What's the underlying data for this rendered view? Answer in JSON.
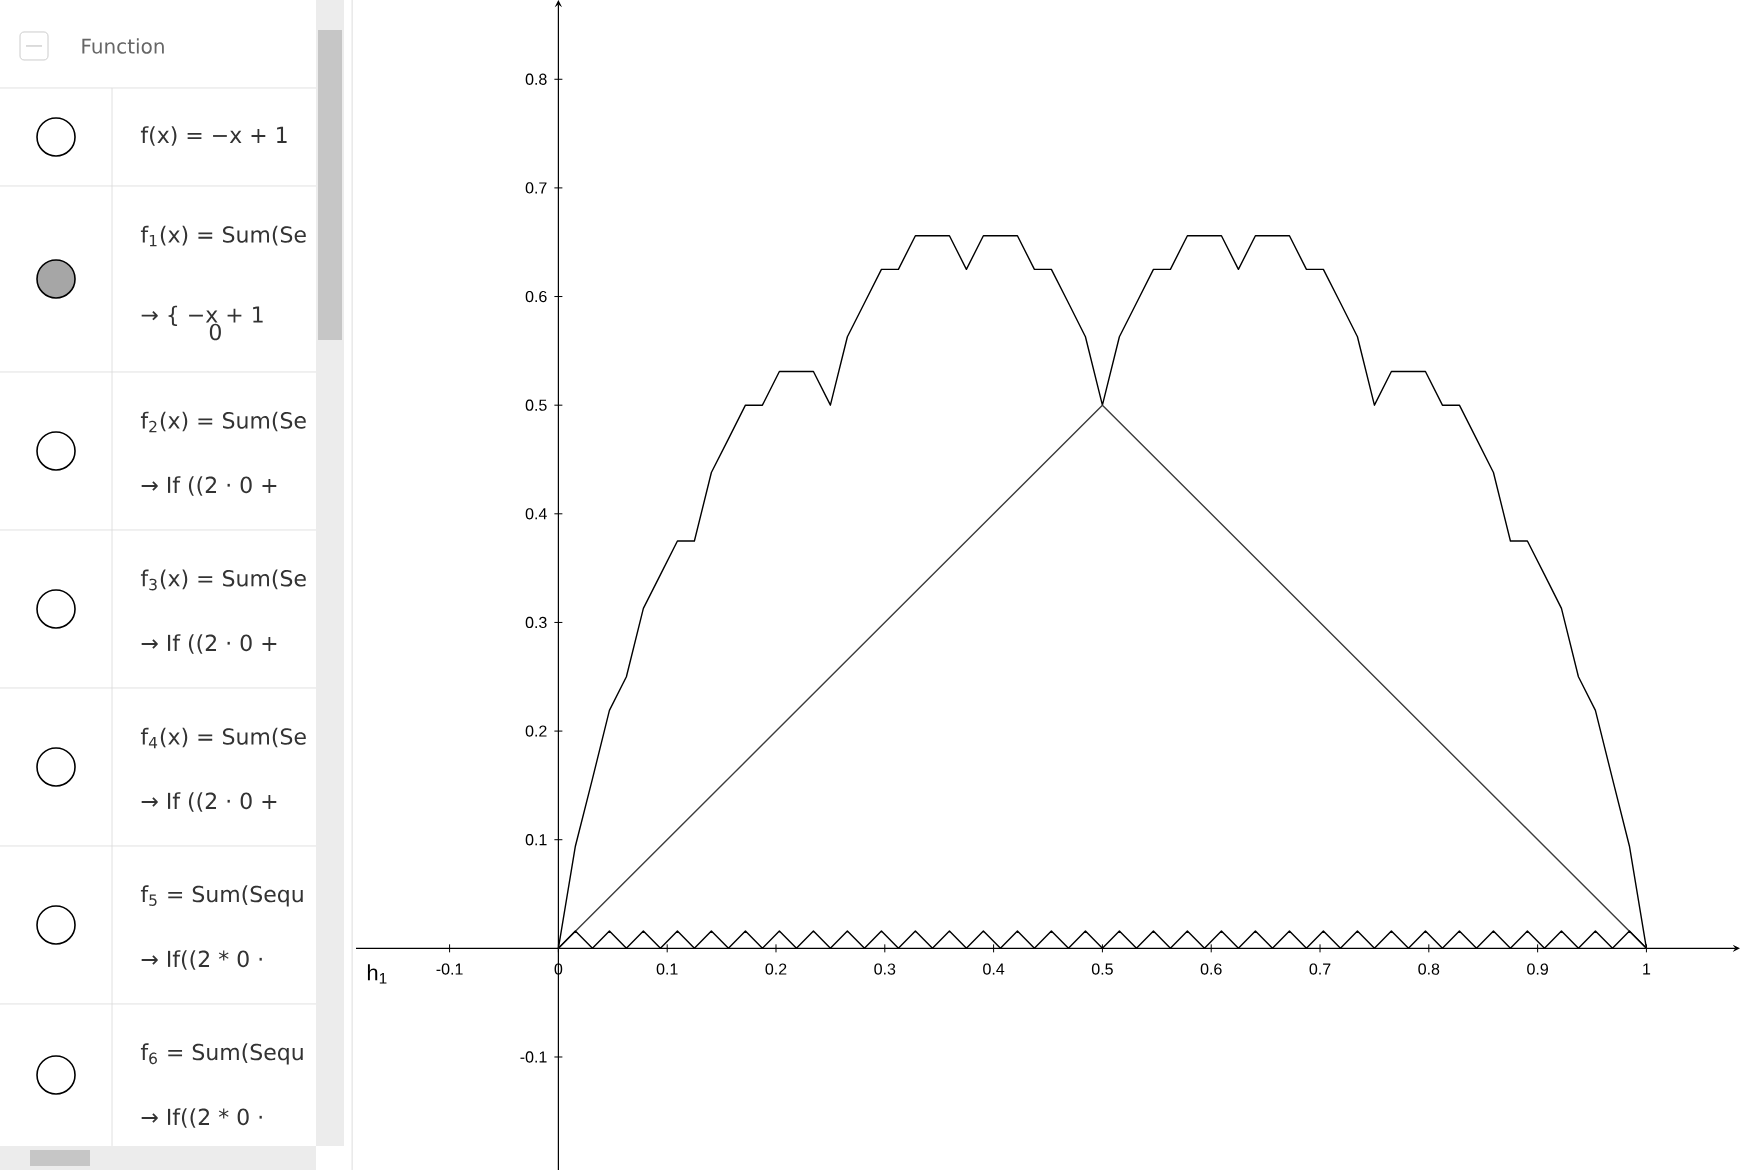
{
  "chart_data": {
    "type": "line",
    "xlim": [
      -0.186,
      1.086
    ],
    "ylim": [
      -0.204,
      0.873
    ],
    "xticks": [
      -0.1,
      0,
      0.1,
      0.2,
      0.3,
      0.4,
      0.5,
      0.6,
      0.7,
      0.8,
      0.9,
      1
    ],
    "yticks": [
      -0.1,
      0.1,
      0.2,
      0.3,
      0.4,
      0.5,
      0.6,
      0.7,
      0.8
    ],
    "grid": false,
    "marker": "none",
    "line_style": "solid",
    "series": [
      {
        "color": "#000000",
        "x": [
          0,
          0.0156,
          0.0313,
          0.0469,
          0.0625,
          0.0781,
          0.0938,
          0.1094,
          0.125,
          0.1406,
          0.1563,
          0.1719,
          0.1875,
          0.2031,
          0.2188,
          0.2344,
          0.25,
          0.2656,
          0.2813,
          0.2969,
          0.3125,
          0.3281,
          0.3438,
          0.3594,
          0.375,
          0.3906,
          0.4063,
          0.4219,
          0.4375,
          0.4531,
          0.4688,
          0.4844,
          0.5,
          0.5156,
          0.5313,
          0.5469,
          0.5625,
          0.5781,
          0.5938,
          0.6094,
          0.625,
          0.6406,
          0.6563,
          0.6719,
          0.6875,
          0.7031,
          0.7188,
          0.7344,
          0.75,
          0.7656,
          0.7813,
          0.7969,
          0.8125,
          0.8281,
          0.8438,
          0.8594,
          0.875,
          0.8906,
          0.9063,
          0.9219,
          0.9375,
          0.9531,
          0.9688,
          0.9844,
          1
        ],
        "values": [
          0,
          0.094,
          0.156,
          0.219,
          0.25,
          0.313,
          0.344,
          0.375,
          0.375,
          0.438,
          0.469,
          0.5,
          0.5,
          0.531,
          0.531,
          0.531,
          0.5,
          0.563,
          0.594,
          0.625,
          0.625,
          0.656,
          0.656,
          0.656,
          0.625,
          0.656,
          0.656,
          0.656,
          0.625,
          0.625,
          0.594,
          0.563,
          0.5,
          0.563,
          0.594,
          0.625,
          0.625,
          0.656,
          0.656,
          0.656,
          0.625,
          0.656,
          0.656,
          0.656,
          0.625,
          0.625,
          0.594,
          0.563,
          0.5,
          0.531,
          0.531,
          0.531,
          0.5,
          0.5,
          0.469,
          0.438,
          0.375,
          0.375,
          0.344,
          0.313,
          0.25,
          0.219,
          0.156,
          0.094,
          0
        ]
      },
      {
        "color": "#3c3c3c",
        "x": [
          0,
          0.5,
          1
        ],
        "values": [
          0,
          0.5,
          0
        ]
      },
      {
        "color": "#000000",
        "x": [
          0,
          0.0156,
          0.0313,
          0.0469,
          0.0625,
          0.0781,
          0.0938,
          0.1094,
          0.125,
          0.1406,
          0.1563,
          0.1719,
          0.1875,
          0.2031,
          0.2188,
          0.2344,
          0.25,
          0.2656,
          0.2813,
          0.2969,
          0.3125,
          0.3281,
          0.3438,
          0.3594,
          0.375,
          0.3906,
          0.4063,
          0.4219,
          0.4375,
          0.4531,
          0.4688,
          0.4844,
          0.5,
          0.5156,
          0.5313,
          0.5469,
          0.5625,
          0.5781,
          0.5938,
          0.6094,
          0.625,
          0.6406,
          0.6563,
          0.6719,
          0.6875,
          0.7031,
          0.7188,
          0.7344,
          0.75,
          0.7656,
          0.7813,
          0.7969,
          0.8125,
          0.8281,
          0.8438,
          0.8594,
          0.875,
          0.8906,
          0.9063,
          0.9219,
          0.9375,
          0.9531,
          0.9688,
          0.9844,
          1
        ],
        "values": [
          0,
          0.016,
          0,
          0.016,
          0,
          0.016,
          0,
          0.016,
          0,
          0.016,
          0,
          0.016,
          0,
          0.016,
          0,
          0.016,
          0,
          0.016,
          0,
          0.016,
          0,
          0.016,
          0,
          0.016,
          0,
          0.016,
          0,
          0.016,
          0,
          0.016,
          0,
          0.016,
          0,
          0.016,
          0,
          0.016,
          0,
          0.016,
          0,
          0.016,
          0,
          0.016,
          0,
          0.016,
          0,
          0.016,
          0,
          0.016,
          0,
          0.016,
          0,
          0.016,
          0,
          0.016,
          0,
          0.016,
          0,
          0.016,
          0,
          0.016,
          0,
          0.016,
          0,
          0.016,
          0
        ]
      }
    ],
    "annotations": [
      "Function",
      "f(x) = −x + 1",
      "f$_{1}$(x) = Sum(Se",
      "→ { −x + 1",
      "0",
      "f$_{2}$(x) = Sum(Se",
      "→ If ((2 · 0 +",
      "f$_{3}$(x) = Sum(Se",
      "→ If ((2 · 0 +",
      "f$_{4}$(x) = Sum(Se",
      "→ If ((2 · 0 +",
      "f$_{5}$ = Sum(Sequ",
      "→ If((2 * 0 ·",
      "f$_{6}$ = Sum(Sequ",
      "→ If((2 * 0 ·",
      "h$_{1}$"
    ]
  }
}
